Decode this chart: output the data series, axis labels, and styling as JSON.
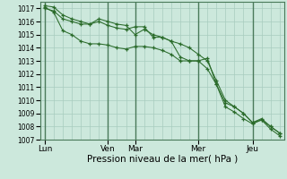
{
  "xlabel": "Pression niveau de la mer( hPa )",
  "ylim": [
    1007,
    1017.5
  ],
  "yticks": [
    1007,
    1008,
    1009,
    1010,
    1011,
    1012,
    1013,
    1014,
    1015,
    1016,
    1017
  ],
  "background_color": "#cce8dc",
  "grid_color": "#a8ccbe",
  "line_color": "#2a6b2a",
  "x_tick_labels": [
    "Lun",
    "Ven",
    "Mar",
    "Mer",
    "Jeu"
  ],
  "x_tick_positions": [
    0,
    7,
    10,
    17,
    23
  ],
  "vline_positions": [
    0,
    7,
    10,
    17,
    23
  ],
  "series1": [
    1017.0,
    1016.8,
    1016.2,
    1016.0,
    1015.8,
    1015.8,
    1016.0,
    1015.7,
    1015.5,
    1015.4,
    1015.6,
    1015.6,
    1014.8,
    1014.8,
    1014.5,
    1013.3,
    1013.0,
    1013.0,
    1013.2,
    1011.2,
    1009.8,
    1009.5,
    1009.0,
    1008.3,
    1008.6,
    1008.0,
    1007.5
  ],
  "series2": [
    1017.1,
    1016.7,
    1015.3,
    1015.0,
    1014.5,
    1014.3,
    1014.3,
    1014.2,
    1014.0,
    1013.9,
    1014.1,
    1014.1,
    1014.0,
    1013.8,
    1013.5,
    1013.0,
    1013.0,
    1013.0,
    1012.4,
    1011.2,
    1009.5,
    1009.1,
    1008.6,
    1008.2,
    1008.5,
    1007.8,
    1007.3
  ],
  "series3": [
    1017.2,
    1017.1,
    1016.5,
    1016.2,
    1016.0,
    1015.8,
    1016.2,
    1016.0,
    1015.8,
    1015.7,
    1015.0,
    1015.4,
    1015.0,
    1014.8,
    1014.5,
    1014.3,
    1014.0,
    1013.5,
    1013.0,
    1011.5,
    1010.0,
    1009.5,
    1009.0,
    1008.3,
    1008.5,
    1008.0,
    1007.5
  ],
  "n_points": 27,
  "ytick_fontsize": 5.5,
  "xtick_fontsize": 6.5,
  "xlabel_fontsize": 7.5
}
